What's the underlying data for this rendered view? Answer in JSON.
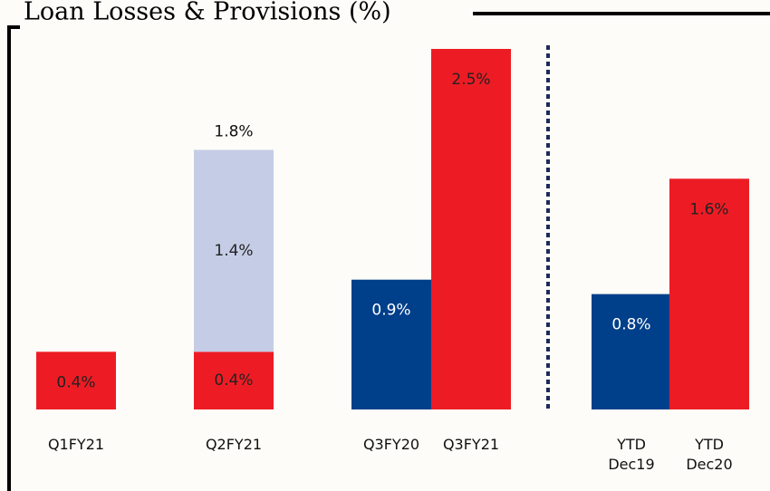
{
  "chart_data": {
    "type": "bar",
    "title": "Loan Losses & Provisions (%)",
    "stacked": true,
    "categories": [
      "Q1FY21",
      "Q2FY21",
      "Q3FY20",
      "Q3FY21",
      "YTD Dec19",
      "YTD Dec20"
    ],
    "series": [
      {
        "color": "#ed1c24",
        "label_color": "#222222",
        "values": [
          0.4,
          0.4,
          null,
          2.5,
          null,
          1.6
        ],
        "value_labels": [
          "0.4%",
          "0.4%",
          null,
          "2.5%",
          null,
          "1.6%"
        ]
      },
      {
        "color": "#003f8a",
        "label_color": "#ffffff",
        "values": [
          null,
          null,
          0.9,
          null,
          0.8,
          null
        ],
        "value_labels": [
          null,
          null,
          "0.9%",
          null,
          "0.8%",
          null
        ]
      },
      {
        "color": "#c5cde6",
        "label_color": "#222222",
        "values": [
          null,
          1.4,
          null,
          null,
          null,
          null
        ],
        "value_labels": [
          null,
          "1.4%",
          null,
          null,
          null,
          null
        ]
      }
    ],
    "totals": {
      "values": [
        null,
        1.8,
        null,
        null,
        null,
        null
      ],
      "value_labels": [
        null,
        "1.8%",
        null,
        null,
        null,
        null
      ]
    },
    "ylim": [
      0,
      2.5
    ]
  }
}
